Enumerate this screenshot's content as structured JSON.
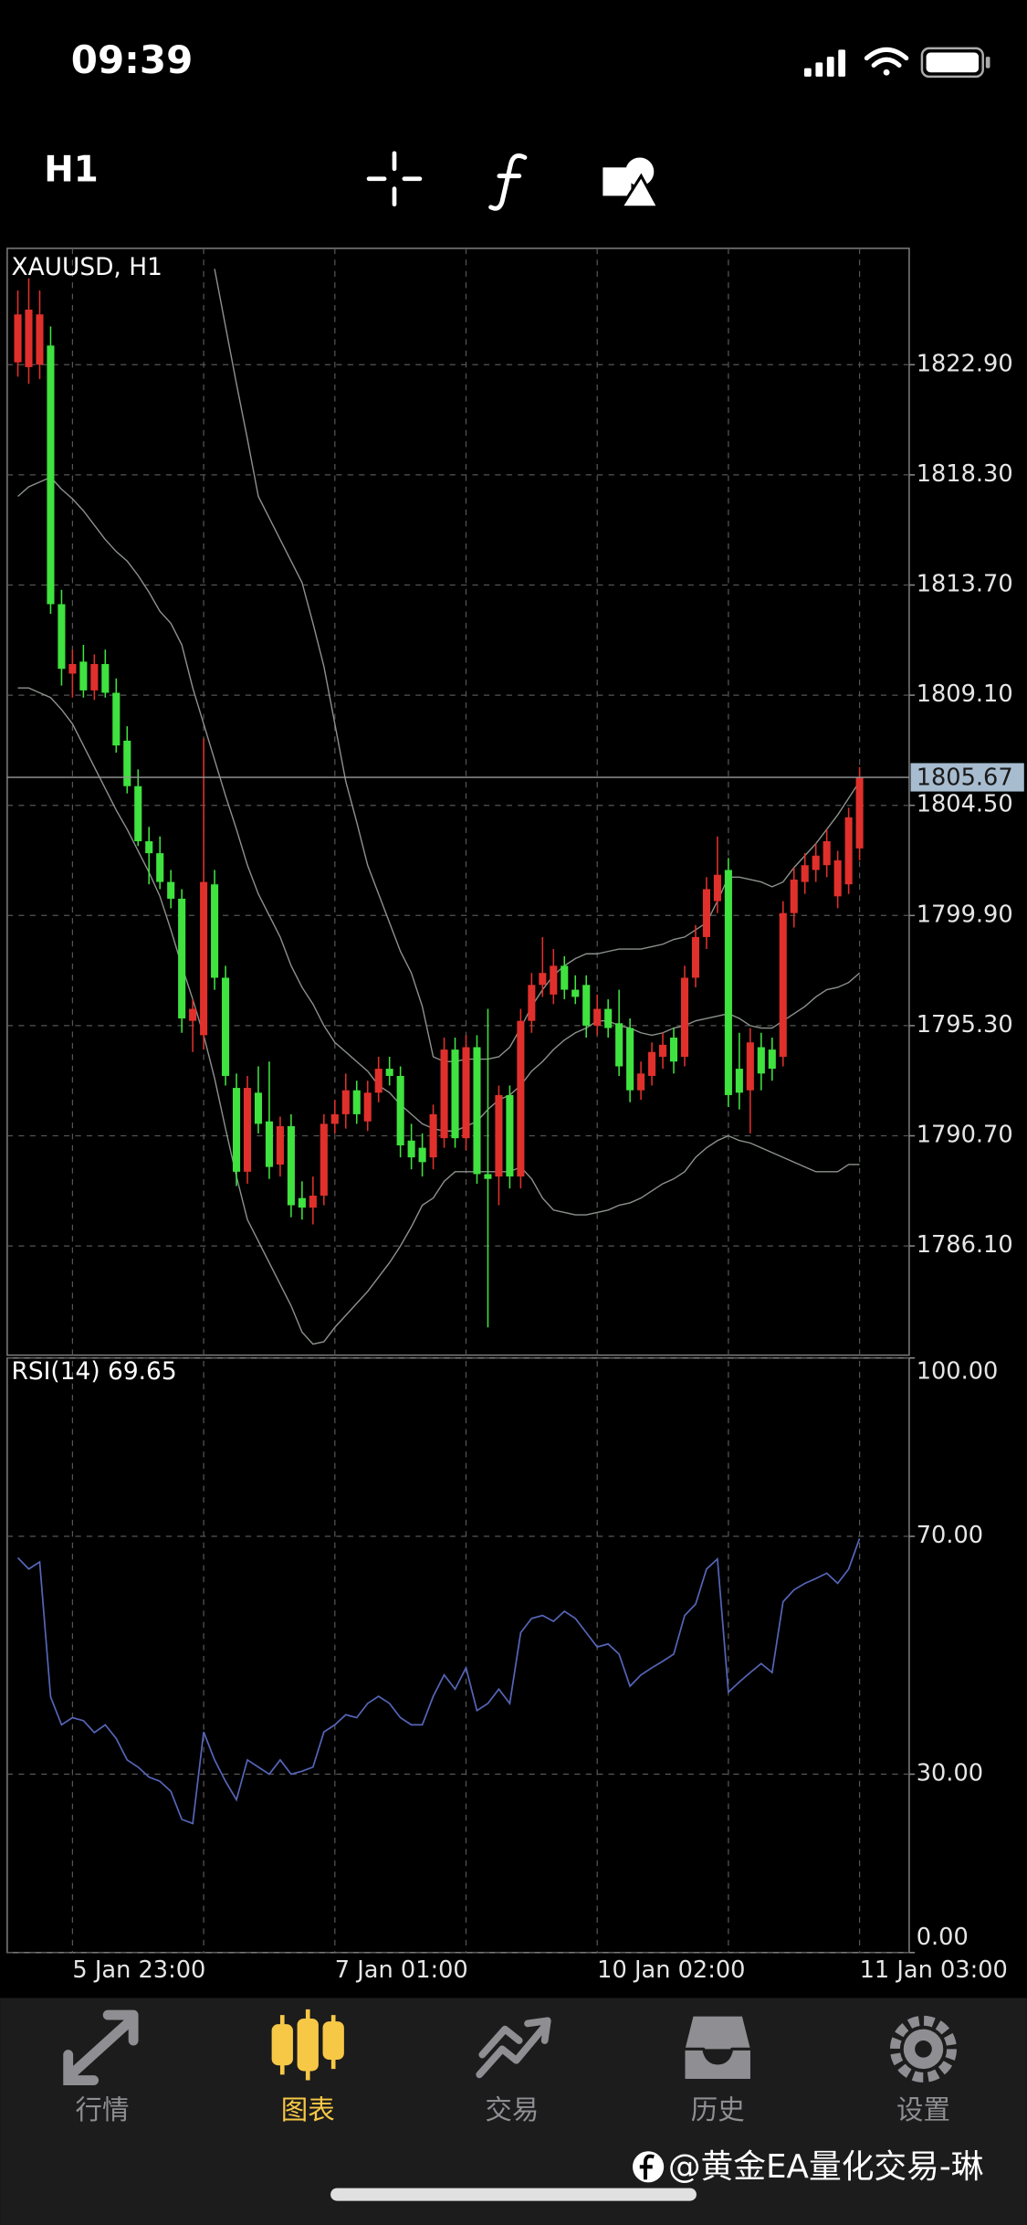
{
  "status_bar": {
    "time": "09:39"
  },
  "toolbar": {
    "timeframe": "H1"
  },
  "chart_data": [
    {
      "type": "candlestick",
      "title": "XAUUSD, H1",
      "categories": [
        null,
        null,
        null,
        null,
        null,
        "5 Jan 23:00",
        null,
        null,
        null,
        null,
        null,
        null,
        null,
        null,
        null,
        null,
        null,
        null,
        null,
        null,
        null,
        null,
        null,
        null,
        null,
        null,
        null,
        null,
        null,
        "7 Jan 01:00",
        null,
        null,
        null,
        null,
        null,
        null,
        null,
        null,
        null,
        null,
        null,
        null,
        null,
        null,
        null,
        null,
        null,
        null,
        null,
        null,
        null,
        null,
        null,
        "10 Jan 02:00",
        null,
        null,
        null,
        null,
        null,
        null,
        null,
        null,
        null,
        null,
        null,
        null,
        null,
        null,
        null,
        null,
        null,
        null,
        null,
        null,
        null,
        null,
        null,
        "11 Jan 03:00"
      ],
      "open": [
        1823.0,
        1822.8,
        1822.9,
        1823.7,
        1812.9,
        1810.0,
        1810.5,
        1809.3,
        1810.4,
        1809.2,
        1807.2,
        1805.3,
        1803.0,
        1802.5,
        1801.3,
        1800.6,
        1795.5,
        1794.9,
        1801.2,
        1797.3,
        1792.7,
        1789.2,
        1792.5,
        1791.3,
        1789.5,
        1791.1,
        1788.1,
        1787.7,
        1788.2,
        1791.2,
        1791.6,
        1792.6,
        1791.3,
        1792.5,
        1793.5,
        1793.2,
        1790.5,
        1790.2,
        1789.8,
        1790.6,
        1794.3,
        1790.6,
        1794.4,
        1789.1,
        1789.0,
        1792.4,
        1789.0,
        1795.5,
        1797.0,
        1796.6,
        1797.8,
        1796.8,
        1797.0,
        1795.3,
        1796.0,
        1795.4,
        1795.2,
        1792.6,
        1793.2,
        1794.0,
        1794.8,
        1794.0,
        1797.3,
        1799.0,
        1800.5,
        1801.8,
        1793.5,
        1792.6,
        1794.4,
        1794.3,
        1794.0,
        1800.0,
        1801.3,
        1801.8,
        1802.0,
        1800.7,
        1801.2,
        1802.7
      ],
      "high": [
        1826.0,
        1826.5,
        1826.0,
        1824.5,
        1813.5,
        1811.0,
        1811.2,
        1810.8,
        1811.0,
        1809.8,
        1807.8,
        1806.0,
        1803.6,
        1803.2,
        1801.8,
        1801.0,
        1796.4,
        1807.3,
        1801.8,
        1797.8,
        1793.3,
        1793.2,
        1793.6,
        1793.8,
        1791.5,
        1791.6,
        1788.8,
        1789.0,
        1791.6,
        1792.2,
        1793.3,
        1793.0,
        1793.0,
        1794.0,
        1794.0,
        1793.6,
        1791.2,
        1790.8,
        1792.0,
        1794.8,
        1794.8,
        1794.9,
        1794.9,
        1796.0,
        1792.8,
        1792.8,
        1796.0,
        1797.5,
        1799.0,
        1798.5,
        1798.2,
        1797.4,
        1797.4,
        1796.6,
        1796.4,
        1796.8,
        1795.6,
        1793.8,
        1794.6,
        1795.0,
        1795.2,
        1797.8,
        1799.5,
        1801.5,
        1803.2,
        1802.3,
        1795.0,
        1795.2,
        1795.0,
        1794.8,
        1800.5,
        1801.9,
        1802.5,
        1802.9,
        1803.5,
        1802.6,
        1804.4,
        1806.1
      ],
      "low": [
        1822.4,
        1822.1,
        1822.3,
        1812.5,
        1809.5,
        1809.0,
        1809.0,
        1808.9,
        1809.0,
        1806.7,
        1805.0,
        1802.8,
        1801.2,
        1801.0,
        1800.2,
        1795.0,
        1794.2,
        1794.3,
        1796.8,
        1792.8,
        1788.6,
        1788.7,
        1790.8,
        1788.9,
        1789.0,
        1787.3,
        1787.2,
        1787.0,
        1787.8,
        1790.8,
        1791.0,
        1791.2,
        1790.9,
        1792.1,
        1792.8,
        1789.8,
        1789.3,
        1789.0,
        1789.3,
        1790.2,
        1790.2,
        1790.1,
        1788.7,
        1782.7,
        1787.8,
        1788.5,
        1788.5,
        1795.0,
        1796.5,
        1796.2,
        1796.4,
        1796.2,
        1794.8,
        1794.9,
        1794.8,
        1793.2,
        1792.1,
        1792.2,
        1792.8,
        1793.5,
        1793.3,
        1793.6,
        1796.9,
        1798.5,
        1800.0,
        1791.9,
        1791.8,
        1790.8,
        1792.6,
        1793.0,
        1793.6,
        1799.4,
        1800.8,
        1801.3,
        1801.5,
        1800.2,
        1800.8,
        1802.2
      ],
      "close": [
        1825.0,
        1825.2,
        1825.0,
        1812.9,
        1810.2,
        1810.4,
        1809.3,
        1810.4,
        1809.2,
        1807.0,
        1805.3,
        1803.0,
        1802.5,
        1801.3,
        1800.6,
        1795.6,
        1796.0,
        1801.3,
        1797.3,
        1793.2,
        1789.2,
        1792.7,
        1791.2,
        1789.4,
        1791.1,
        1787.8,
        1787.7,
        1788.2,
        1791.2,
        1791.6,
        1792.6,
        1791.6,
        1792.5,
        1793.5,
        1793.2,
        1790.3,
        1789.8,
        1789.6,
        1791.6,
        1794.3,
        1790.6,
        1794.4,
        1789.1,
        1788.9,
        1792.4,
        1789.0,
        1795.5,
        1797.0,
        1797.5,
        1797.8,
        1796.8,
        1796.5,
        1795.3,
        1796.0,
        1795.2,
        1793.6,
        1792.6,
        1793.3,
        1794.2,
        1794.5,
        1793.8,
        1797.3,
        1799.0,
        1801.0,
        1801.6,
        1792.4,
        1792.5,
        1794.6,
        1793.3,
        1793.5,
        1800.0,
        1801.4,
        1802.0,
        1802.4,
        1803.0,
        1802.2,
        1804.0,
        1805.67
      ],
      "up_color": "#e0302c",
      "down_color": "#3fe23f",
      "overlays": [
        {
          "color": "#8c928c",
          "values": [
            null,
            null,
            null,
            null,
            null,
            null,
            null,
            null,
            null,
            null,
            null,
            null,
            null,
            null,
            null,
            null,
            null,
            null,
            1826.9,
            1824.5,
            1822.1,
            1819.8,
            1817.4,
            1816.5,
            1815.6,
            1814.7,
            1813.8,
            1812.1,
            1810.3,
            1807.9,
            1805.5,
            1803.8,
            1802.0,
            1800.8,
            1799.6,
            1798.4,
            1797.5,
            1796.1,
            1794.0,
            1793.8,
            1793.8,
            1793.9,
            1793.9,
            1793.9,
            1794.0,
            1794.4,
            1795.2,
            1796.1,
            1796.8,
            1797.4,
            1797.8,
            1798.1,
            1798.3,
            1798.3,
            1798.4,
            1798.5,
            1798.5,
            1798.5,
            1798.6,
            1798.7,
            1798.9,
            1799.0,
            1799.3,
            1799.6,
            1800.5,
            1801.5,
            1801.5,
            1801.4,
            1801.3,
            1801.1,
            1801.3,
            1801.9,
            1802.4,
            1802.9,
            1803.5,
            1804.1,
            1804.8,
            1805.5
          ]
        },
        {
          "color": "#8c928c",
          "values": [
            1817.4,
            1817.8,
            1818.0,
            1818.2,
            1817.7,
            1817.3,
            1816.8,
            1816.2,
            1815.6,
            1815.1,
            1814.7,
            1814.1,
            1813.4,
            1812.6,
            1812.1,
            1811.2,
            1809.4,
            1807.9,
            1806.4,
            1804.9,
            1803.5,
            1802.0,
            1800.8,
            1799.9,
            1799.0,
            1797.8,
            1796.9,
            1796.2,
            1795.3,
            1794.6,
            1794.2,
            1793.8,
            1793.4,
            1792.8,
            1792.5,
            1792.0,
            1791.6,
            1791.2,
            1791.0,
            1790.9,
            1790.9,
            1791.1,
            1791.3,
            1791.8,
            1792.2,
            1792.4,
            1792.8,
            1793.4,
            1793.8,
            1794.3,
            1794.7,
            1795.0,
            1795.2,
            1795.5,
            1795.5,
            1795.3,
            1795.2,
            1795.0,
            1794.9,
            1795.0,
            1795.2,
            1795.3,
            1795.5,
            1795.6,
            1795.7,
            1795.8,
            1795.6,
            1795.3,
            1795.2,
            1795.2,
            1795.5,
            1795.8,
            1796.1,
            1796.5,
            1796.8,
            1796.9,
            1797.1,
            1797.5
          ]
        },
        {
          "color": "#8c928c",
          "values": [
            1809.4,
            1809.4,
            1809.2,
            1809.0,
            1808.5,
            1807.9,
            1807.0,
            1806.1,
            1805.2,
            1804.3,
            1803.5,
            1802.6,
            1801.7,
            1800.7,
            1799.3,
            1797.8,
            1796.4,
            1794.9,
            1793.1,
            1791.0,
            1789.0,
            1787.2,
            1786.3,
            1785.4,
            1784.5,
            1783.6,
            1782.5,
            1782.0,
            1782.1,
            1782.7,
            1783.2,
            1783.7,
            1784.2,
            1784.8,
            1785.4,
            1786.1,
            1786.9,
            1787.8,
            1788.1,
            1788.8,
            1789.2,
            1789.2,
            1789.2,
            1789.2,
            1789.2,
            1789.2,
            1789.4,
            1788.9,
            1788.1,
            1787.6,
            1787.5,
            1787.4,
            1787.4,
            1787.5,
            1787.6,
            1787.8,
            1787.9,
            1788.1,
            1788.4,
            1788.7,
            1788.9,
            1789.2,
            1789.8,
            1790.2,
            1790.5,
            1790.7,
            1790.5,
            1790.4,
            1790.2,
            1790.0,
            1789.8,
            1789.6,
            1789.4,
            1789.2,
            1789.2,
            1789.2,
            1789.5,
            1789.5
          ]
        }
      ],
      "current_price": 1805.67,
      "ylim": [
        1781.54,
        1827.76
      ],
      "yticks": [
        {
          "value": 1822.9,
          "label": "1822.90"
        },
        {
          "value": 1818.3,
          "label": "1818.30"
        },
        {
          "value": 1813.7,
          "label": "1813.70"
        },
        {
          "value": 1809.1,
          "label": "1809.10"
        },
        {
          "value": 1804.5,
          "label": "1804.50"
        },
        {
          "value": 1799.9,
          "label": "1799.90"
        },
        {
          "value": 1795.3,
          "label": "1795.30"
        },
        {
          "value": 1790.7,
          "label": "1790.70"
        },
        {
          "value": 1786.1,
          "label": "1786.10"
        }
      ],
      "grid": true
    },
    {
      "type": "line",
      "title": "RSI(14) 69.65",
      "color": "#5565b8",
      "values": [
        66.4,
        64.5,
        65.7,
        43.0,
        38.3,
        39.5,
        39.0,
        37.0,
        38.3,
        36.0,
        32.4,
        31.2,
        29.5,
        28.8,
        27.1,
        22.4,
        21.7,
        37.1,
        32.4,
        28.8,
        25.7,
        32.4,
        31.2,
        30.0,
        32.4,
        30.0,
        30.5,
        31.2,
        37.1,
        38.3,
        40.0,
        39.5,
        41.9,
        43.1,
        41.9,
        39.5,
        38.3,
        38.3,
        43.1,
        46.7,
        44.3,
        47.9,
        40.7,
        41.9,
        44.3,
        41.9,
        53.8,
        56.2,
        56.7,
        55.7,
        57.4,
        56.2,
        53.8,
        51.4,
        51.9,
        50.2,
        44.8,
        46.7,
        47.9,
        49.0,
        50.2,
        56.7,
        58.6,
        64.5,
        66.2,
        43.8,
        45.5,
        47.1,
        48.6,
        47.1,
        59.0,
        61.0,
        62.1,
        62.9,
        63.8,
        62.1,
        64.5,
        69.65
      ],
      "ylim": [
        0,
        100
      ],
      "yticks": [
        {
          "value": 100,
          "label": "100.00"
        },
        {
          "value": 70,
          "label": "70.00"
        },
        {
          "value": 30,
          "label": "30.00"
        },
        {
          "value": 0,
          "label": "0.00"
        }
      ],
      "grid": true
    }
  ],
  "nav": {
    "items": [
      "行情",
      "图表",
      "交易",
      "历史",
      "设置"
    ],
    "active": 1
  },
  "watermark": "@黄金EA量化交易-琳"
}
